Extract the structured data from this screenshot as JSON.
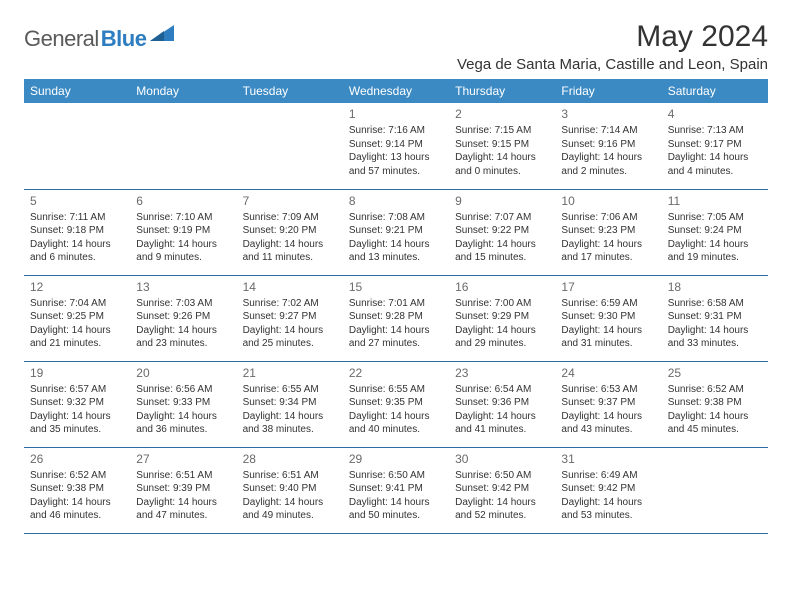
{
  "brand": {
    "part1": "General",
    "part2": "Blue"
  },
  "title": "May 2024",
  "location": "Vega de Santa Maria, Castille and Leon, Spain",
  "colors": {
    "header_bg": "#3b8ac4",
    "header_text": "#ffffff",
    "border": "#2d6da3",
    "brand_gray": "#5a5a5a",
    "brand_blue": "#2d7dc0",
    "daynum": "#6a6a6a",
    "body_text": "#333333"
  },
  "weekdays": [
    "Sunday",
    "Monday",
    "Tuesday",
    "Wednesday",
    "Thursday",
    "Friday",
    "Saturday"
  ],
  "weeks": [
    [
      null,
      null,
      null,
      {
        "n": "1",
        "sunrise": "Sunrise: 7:16 AM",
        "sunset": "Sunset: 9:14 PM",
        "daylight1": "Daylight: 13 hours",
        "daylight2": "and 57 minutes."
      },
      {
        "n": "2",
        "sunrise": "Sunrise: 7:15 AM",
        "sunset": "Sunset: 9:15 PM",
        "daylight1": "Daylight: 14 hours",
        "daylight2": "and 0 minutes."
      },
      {
        "n": "3",
        "sunrise": "Sunrise: 7:14 AM",
        "sunset": "Sunset: 9:16 PM",
        "daylight1": "Daylight: 14 hours",
        "daylight2": "and 2 minutes."
      },
      {
        "n": "4",
        "sunrise": "Sunrise: 7:13 AM",
        "sunset": "Sunset: 9:17 PM",
        "daylight1": "Daylight: 14 hours",
        "daylight2": "and 4 minutes."
      }
    ],
    [
      {
        "n": "5",
        "sunrise": "Sunrise: 7:11 AM",
        "sunset": "Sunset: 9:18 PM",
        "daylight1": "Daylight: 14 hours",
        "daylight2": "and 6 minutes."
      },
      {
        "n": "6",
        "sunrise": "Sunrise: 7:10 AM",
        "sunset": "Sunset: 9:19 PM",
        "daylight1": "Daylight: 14 hours",
        "daylight2": "and 9 minutes."
      },
      {
        "n": "7",
        "sunrise": "Sunrise: 7:09 AM",
        "sunset": "Sunset: 9:20 PM",
        "daylight1": "Daylight: 14 hours",
        "daylight2": "and 11 minutes."
      },
      {
        "n": "8",
        "sunrise": "Sunrise: 7:08 AM",
        "sunset": "Sunset: 9:21 PM",
        "daylight1": "Daylight: 14 hours",
        "daylight2": "and 13 minutes."
      },
      {
        "n": "9",
        "sunrise": "Sunrise: 7:07 AM",
        "sunset": "Sunset: 9:22 PM",
        "daylight1": "Daylight: 14 hours",
        "daylight2": "and 15 minutes."
      },
      {
        "n": "10",
        "sunrise": "Sunrise: 7:06 AM",
        "sunset": "Sunset: 9:23 PM",
        "daylight1": "Daylight: 14 hours",
        "daylight2": "and 17 minutes."
      },
      {
        "n": "11",
        "sunrise": "Sunrise: 7:05 AM",
        "sunset": "Sunset: 9:24 PM",
        "daylight1": "Daylight: 14 hours",
        "daylight2": "and 19 minutes."
      }
    ],
    [
      {
        "n": "12",
        "sunrise": "Sunrise: 7:04 AM",
        "sunset": "Sunset: 9:25 PM",
        "daylight1": "Daylight: 14 hours",
        "daylight2": "and 21 minutes."
      },
      {
        "n": "13",
        "sunrise": "Sunrise: 7:03 AM",
        "sunset": "Sunset: 9:26 PM",
        "daylight1": "Daylight: 14 hours",
        "daylight2": "and 23 minutes."
      },
      {
        "n": "14",
        "sunrise": "Sunrise: 7:02 AM",
        "sunset": "Sunset: 9:27 PM",
        "daylight1": "Daylight: 14 hours",
        "daylight2": "and 25 minutes."
      },
      {
        "n": "15",
        "sunrise": "Sunrise: 7:01 AM",
        "sunset": "Sunset: 9:28 PM",
        "daylight1": "Daylight: 14 hours",
        "daylight2": "and 27 minutes."
      },
      {
        "n": "16",
        "sunrise": "Sunrise: 7:00 AM",
        "sunset": "Sunset: 9:29 PM",
        "daylight1": "Daylight: 14 hours",
        "daylight2": "and 29 minutes."
      },
      {
        "n": "17",
        "sunrise": "Sunrise: 6:59 AM",
        "sunset": "Sunset: 9:30 PM",
        "daylight1": "Daylight: 14 hours",
        "daylight2": "and 31 minutes."
      },
      {
        "n": "18",
        "sunrise": "Sunrise: 6:58 AM",
        "sunset": "Sunset: 9:31 PM",
        "daylight1": "Daylight: 14 hours",
        "daylight2": "and 33 minutes."
      }
    ],
    [
      {
        "n": "19",
        "sunrise": "Sunrise: 6:57 AM",
        "sunset": "Sunset: 9:32 PM",
        "daylight1": "Daylight: 14 hours",
        "daylight2": "and 35 minutes."
      },
      {
        "n": "20",
        "sunrise": "Sunrise: 6:56 AM",
        "sunset": "Sunset: 9:33 PM",
        "daylight1": "Daylight: 14 hours",
        "daylight2": "and 36 minutes."
      },
      {
        "n": "21",
        "sunrise": "Sunrise: 6:55 AM",
        "sunset": "Sunset: 9:34 PM",
        "daylight1": "Daylight: 14 hours",
        "daylight2": "and 38 minutes."
      },
      {
        "n": "22",
        "sunrise": "Sunrise: 6:55 AM",
        "sunset": "Sunset: 9:35 PM",
        "daylight1": "Daylight: 14 hours",
        "daylight2": "and 40 minutes."
      },
      {
        "n": "23",
        "sunrise": "Sunrise: 6:54 AM",
        "sunset": "Sunset: 9:36 PM",
        "daylight1": "Daylight: 14 hours",
        "daylight2": "and 41 minutes."
      },
      {
        "n": "24",
        "sunrise": "Sunrise: 6:53 AM",
        "sunset": "Sunset: 9:37 PM",
        "daylight1": "Daylight: 14 hours",
        "daylight2": "and 43 minutes."
      },
      {
        "n": "25",
        "sunrise": "Sunrise: 6:52 AM",
        "sunset": "Sunset: 9:38 PM",
        "daylight1": "Daylight: 14 hours",
        "daylight2": "and 45 minutes."
      }
    ],
    [
      {
        "n": "26",
        "sunrise": "Sunrise: 6:52 AM",
        "sunset": "Sunset: 9:38 PM",
        "daylight1": "Daylight: 14 hours",
        "daylight2": "and 46 minutes."
      },
      {
        "n": "27",
        "sunrise": "Sunrise: 6:51 AM",
        "sunset": "Sunset: 9:39 PM",
        "daylight1": "Daylight: 14 hours",
        "daylight2": "and 47 minutes."
      },
      {
        "n": "28",
        "sunrise": "Sunrise: 6:51 AM",
        "sunset": "Sunset: 9:40 PM",
        "daylight1": "Daylight: 14 hours",
        "daylight2": "and 49 minutes."
      },
      {
        "n": "29",
        "sunrise": "Sunrise: 6:50 AM",
        "sunset": "Sunset: 9:41 PM",
        "daylight1": "Daylight: 14 hours",
        "daylight2": "and 50 minutes."
      },
      {
        "n": "30",
        "sunrise": "Sunrise: 6:50 AM",
        "sunset": "Sunset: 9:42 PM",
        "daylight1": "Daylight: 14 hours",
        "daylight2": "and 52 minutes."
      },
      {
        "n": "31",
        "sunrise": "Sunrise: 6:49 AM",
        "sunset": "Sunset: 9:42 PM",
        "daylight1": "Daylight: 14 hours",
        "daylight2": "and 53 minutes."
      },
      null
    ]
  ]
}
